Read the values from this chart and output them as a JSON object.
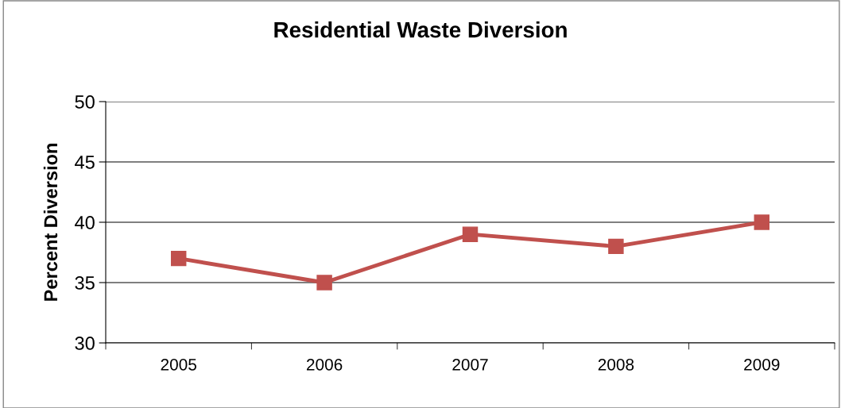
{
  "chart_data": {
    "type": "line",
    "title": "Residential Waste Diversion",
    "ylabel": "Percent Diversion",
    "categories": [
      "2005",
      "2006",
      "2007",
      "2008",
      "2009"
    ],
    "series": [
      {
        "color": "#c0504d",
        "values": [
          37,
          35,
          39,
          38,
          40
        ]
      }
    ],
    "ylim": [
      30,
      50
    ],
    "yticks": [
      30,
      35,
      40,
      45,
      50
    ],
    "grid": "y",
    "marker": "square",
    "line_style": "solid"
  }
}
